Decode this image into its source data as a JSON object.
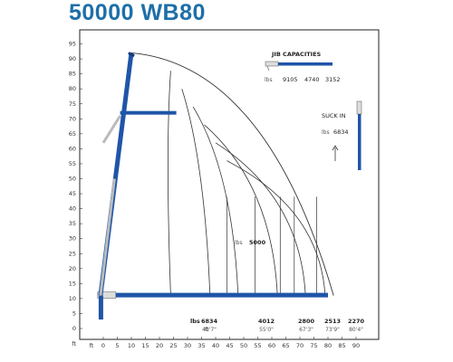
{
  "title": "50000 WB80",
  "colors": {
    "title": "#1e6fa8",
    "boom": "#1f55a8",
    "boom_dark": "#143a7a",
    "curve": "#333333",
    "grid": "#222222"
  },
  "axes": {
    "y_ticks": [
      "95",
      "90",
      "85",
      "80",
      "75",
      "70",
      "65",
      "60",
      "55",
      "50",
      "45",
      "40",
      "35",
      "30",
      "25",
      "20",
      "15",
      "10",
      "5",
      "0",
      "ft"
    ],
    "x_ticks": [
      "ft",
      "0",
      "5",
      "10",
      "15",
      "20",
      "25",
      "30",
      "35",
      "40",
      "45",
      "50",
      "55",
      "60",
      "65",
      "70",
      "75",
      "80",
      "85",
      "90"
    ]
  },
  "jib": {
    "title": "JIB CAPACITIES",
    "unit": "lbs",
    "values": [
      "9105",
      "4740",
      "3152"
    ]
  },
  "suck_in": {
    "title": "SUCK IN",
    "unit": "lbs",
    "value": "6834"
  },
  "center_label": {
    "unit": "lbs",
    "value": "5000"
  },
  "capacities": {
    "unit_lbs": "lbs",
    "unit_ft": "ft",
    "values": [
      "6834",
      "4012",
      "2800",
      "2513",
      "2270"
    ],
    "reaches": [
      "40'7\"",
      "55'0\"",
      "67'3\"",
      "73'9\"",
      "80'4\""
    ]
  },
  "chart_data": {
    "type": "diagram",
    "title": "50000 WB80",
    "x_range": [
      0,
      90
    ],
    "y_range": [
      0,
      95
    ],
    "boom_max_height": 92,
    "arc_reaches_ft": [
      24,
      38,
      48,
      62,
      72,
      79
    ],
    "capacity_points": [
      {
        "lbs": 6834,
        "reach": "40'7\""
      },
      {
        "lbs": 4012,
        "reach": "55'0\""
      },
      {
        "lbs": 2800,
        "reach": "67'3\""
      },
      {
        "lbs": 2513,
        "reach": "73'9\""
      },
      {
        "lbs": 2270,
        "reach": "80'4\""
      }
    ]
  }
}
